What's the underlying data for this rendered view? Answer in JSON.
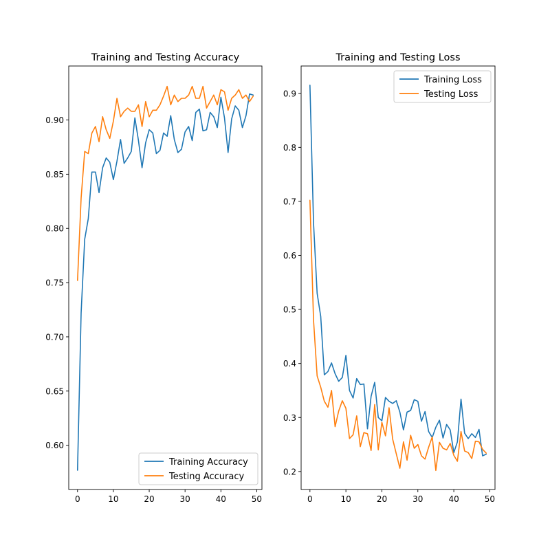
{
  "chart_data": [
    {
      "type": "line",
      "title": "Training and Testing Accuracy",
      "xlabel": "",
      "ylabel": "",
      "xlim": [
        -2.45,
        51.45
      ],
      "ylim": [
        0.5592,
        0.9498
      ],
      "xticks": [
        0,
        10,
        20,
        30,
        40,
        50
      ],
      "yticks": [
        0.6,
        0.65,
        0.7,
        0.75,
        0.8,
        0.85,
        0.9
      ],
      "xtick_labels": [
        "0",
        "10",
        "20",
        "30",
        "40",
        "50"
      ],
      "ytick_labels": [
        "0.60",
        "0.65",
        "0.70",
        "0.75",
        "0.80",
        "0.85",
        "0.90"
      ],
      "grid": false,
      "legend_position": "lower-right",
      "series": [
        {
          "name": "Training Accuracy",
          "color": "#1f77b4",
          "x": [
            0,
            1,
            2,
            3,
            4,
            5,
            6,
            7,
            8,
            9,
            10,
            11,
            12,
            13,
            14,
            15,
            16,
            17,
            18,
            19,
            20,
            21,
            22,
            23,
            24,
            25,
            26,
            27,
            28,
            29,
            30,
            31,
            32,
            33,
            34,
            35,
            36,
            37,
            38,
            39,
            40,
            41,
            42,
            43,
            44,
            45,
            46,
            47,
            48,
            49
          ],
          "values": [
            0.577,
            0.722,
            0.79,
            0.809,
            0.852,
            0.852,
            0.833,
            0.856,
            0.865,
            0.861,
            0.845,
            0.862,
            0.882,
            0.86,
            0.865,
            0.871,
            0.902,
            0.881,
            0.856,
            0.879,
            0.891,
            0.888,
            0.869,
            0.872,
            0.888,
            0.885,
            0.904,
            0.882,
            0.87,
            0.873,
            0.889,
            0.894,
            0.881,
            0.907,
            0.91,
            0.89,
            0.891,
            0.907,
            0.903,
            0.893,
            0.921,
            0.902,
            0.87,
            0.901,
            0.913,
            0.909,
            0.893,
            0.904,
            0.924,
            0.923
          ]
        },
        {
          "name": "Testing Accuracy",
          "color": "#ff7f0e",
          "x": [
            0,
            1,
            2,
            3,
            4,
            5,
            6,
            7,
            8,
            9,
            10,
            11,
            12,
            13,
            14,
            15,
            16,
            17,
            18,
            19,
            20,
            21,
            22,
            23,
            24,
            25,
            26,
            27,
            28,
            29,
            30,
            31,
            32,
            33,
            34,
            35,
            36,
            37,
            38,
            39,
            40,
            41,
            42,
            43,
            44,
            45,
            46,
            47,
            48,
            49
          ],
          "values": [
            0.752,
            0.828,
            0.871,
            0.869,
            0.888,
            0.894,
            0.88,
            0.903,
            0.891,
            0.883,
            0.899,
            0.92,
            0.903,
            0.908,
            0.911,
            0.908,
            0.908,
            0.914,
            0.894,
            0.917,
            0.903,
            0.909,
            0.909,
            0.914,
            0.922,
            0.931,
            0.914,
            0.923,
            0.917,
            0.92,
            0.92,
            0.923,
            0.931,
            0.92,
            0.92,
            0.931,
            0.911,
            0.917,
            0.923,
            0.914,
            0.928,
            0.926,
            0.909,
            0.92,
            0.923,
            0.928,
            0.92,
            0.923,
            0.917,
            0.922
          ]
        }
      ]
    },
    {
      "type": "line",
      "title": "Training and Testing Loss",
      "xlabel": "",
      "ylabel": "",
      "xlim": [
        -2.45,
        51.45
      ],
      "ylim": [
        0.1667,
        0.9506
      ],
      "xticks": [
        0,
        10,
        20,
        30,
        40,
        50
      ],
      "yticks": [
        0.2,
        0.3,
        0.4,
        0.5,
        0.6,
        0.7,
        0.8,
        0.9
      ],
      "xtick_labels": [
        "0",
        "10",
        "20",
        "30",
        "40",
        "50"
      ],
      "ytick_labels": [
        "0.2",
        "0.3",
        "0.4",
        "0.5",
        "0.6",
        "0.7",
        "0.8",
        "0.9"
      ],
      "grid": false,
      "legend_position": "upper-right",
      "series": [
        {
          "name": "Training Loss",
          "color": "#1f77b4",
          "x": [
            0,
            1,
            2,
            3,
            4,
            5,
            6,
            7,
            8,
            9,
            10,
            11,
            12,
            13,
            14,
            15,
            16,
            17,
            18,
            19,
            20,
            21,
            22,
            23,
            24,
            25,
            26,
            27,
            28,
            29,
            30,
            31,
            32,
            33,
            34,
            35,
            36,
            37,
            38,
            39,
            40,
            41,
            42,
            43,
            44,
            45,
            46,
            47,
            48,
            49
          ],
          "values": [
            0.915,
            0.66,
            0.53,
            0.487,
            0.379,
            0.385,
            0.401,
            0.381,
            0.367,
            0.374,
            0.415,
            0.35,
            0.336,
            0.372,
            0.361,
            0.362,
            0.279,
            0.339,
            0.365,
            0.3,
            0.294,
            0.337,
            0.33,
            0.326,
            0.331,
            0.31,
            0.277,
            0.31,
            0.313,
            0.333,
            0.33,
            0.293,
            0.311,
            0.274,
            0.263,
            0.282,
            0.295,
            0.262,
            0.287,
            0.277,
            0.235,
            0.255,
            0.334,
            0.271,
            0.261,
            0.27,
            0.263,
            0.278,
            0.229,
            0.232
          ]
        },
        {
          "name": "Testing Loss",
          "color": "#ff7f0e",
          "x": [
            0,
            1,
            2,
            3,
            4,
            5,
            6,
            7,
            8,
            9,
            10,
            11,
            12,
            13,
            14,
            15,
            16,
            17,
            18,
            19,
            20,
            21,
            22,
            23,
            24,
            25,
            26,
            27,
            28,
            29,
            30,
            31,
            32,
            33,
            34,
            35,
            36,
            37,
            38,
            39,
            40,
            41,
            42,
            43,
            44,
            45,
            46,
            47,
            48,
            49
          ],
          "values": [
            0.702,
            0.48,
            0.377,
            0.356,
            0.33,
            0.319,
            0.35,
            0.283,
            0.312,
            0.331,
            0.317,
            0.261,
            0.268,
            0.303,
            0.246,
            0.272,
            0.27,
            0.239,
            0.324,
            0.24,
            0.291,
            0.266,
            0.318,
            0.26,
            0.233,
            0.206,
            0.255,
            0.221,
            0.267,
            0.243,
            0.25,
            0.229,
            0.223,
            0.245,
            0.264,
            0.202,
            0.254,
            0.243,
            0.24,
            0.252,
            0.23,
            0.219,
            0.274,
            0.238,
            0.235,
            0.224,
            0.256,
            0.255,
            0.241,
            0.234
          ]
        }
      ]
    }
  ]
}
